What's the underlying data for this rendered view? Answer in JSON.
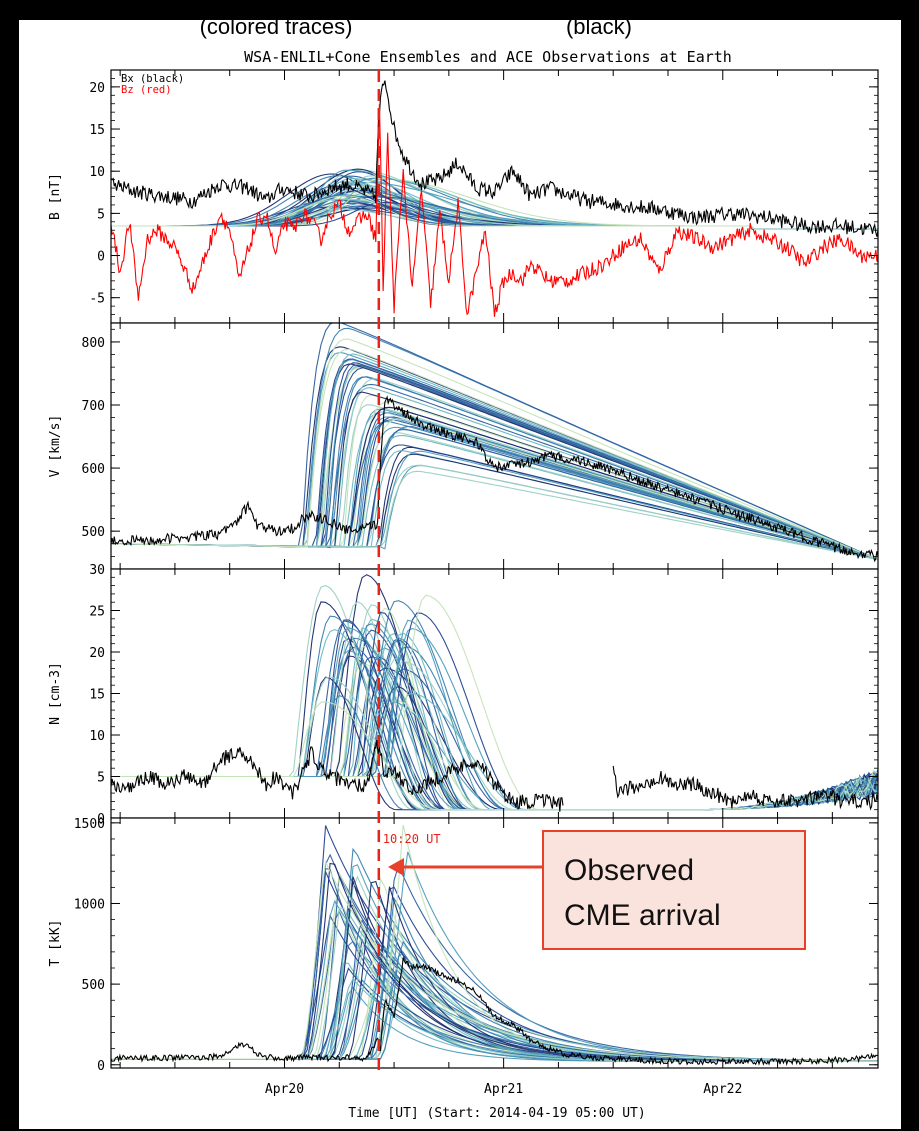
{
  "header": {
    "colored_label": "(colored traces)",
    "black_label": "(black)",
    "title": "WSA-ENLIL+Cone Ensembles and ACE Observations at Earth"
  },
  "colors": {
    "background": "#000000",
    "plot_bg": "#ffffff",
    "observed": "#000000",
    "bz": "#ff0000",
    "ensemble": [
      "#1a2a6c",
      "#22438f",
      "#2c5fa0",
      "#3a7fb0",
      "#4d9cbc",
      "#6cb8c4",
      "#9bd0c3",
      "#c4e3b8"
    ],
    "arrival_line": "#e8241a",
    "callout_border": "#e8402a",
    "callout_bg": "#fbe3dd"
  },
  "x_axis": {
    "label": "Time [UT] (Start: 2014-04-19 05:00 UT)",
    "range_hours": [
      0,
      84
    ],
    "ticks": [
      {
        "h": 19,
        "label": "Apr20"
      },
      {
        "h": 43,
        "label": "Apr21"
      },
      {
        "h": 67,
        "label": "Apr22"
      }
    ],
    "minor_step_hours": 6
  },
  "annotation": {
    "arrival_hour": 29.33,
    "arrival_label": "10:20 UT",
    "callout_lines": [
      "Observed",
      "CME arrival"
    ]
  },
  "chart_data": [
    {
      "type": "line",
      "panel": "B",
      "ylabel": "B [nT]",
      "ylim": [
        -8,
        22
      ],
      "yticks": [
        -5,
        0,
        5,
        10,
        15,
        20
      ],
      "legend": [
        {
          "name": "Bx (black)",
          "color": "#000000"
        },
        {
          "name": "Bz (red)",
          "color": "#ff0000"
        }
      ],
      "legend_position": "top-left",
      "observed_series": [
        {
          "name": "Bx (black)",
          "color": "#000000",
          "x": [
            0,
            3,
            6,
            9,
            12,
            15,
            17,
            18,
            19,
            20,
            22,
            24,
            26,
            27,
            28,
            29,
            29.3,
            29.6,
            30,
            31,
            32,
            33,
            34,
            36,
            38,
            40,
            42,
            44,
            46,
            48,
            52,
            56,
            60,
            64,
            68,
            72,
            76,
            80,
            84
          ],
          "y": [
            8.5,
            7.5,
            7,
            6.5,
            8.5,
            8,
            6.5,
            7.5,
            8,
            7.5,
            7,
            8,
            8.5,
            8,
            7.5,
            7,
            16,
            19,
            21,
            15,
            12,
            10,
            8.5,
            9,
            11,
            8,
            7.5,
            10,
            7,
            8,
            6.5,
            6,
            5.5,
            4.5,
            5,
            4.5,
            3.5,
            3.5,
            3
          ]
        },
        {
          "name": "Bz (red)",
          "color": "#ff0000",
          "x": [
            0,
            1,
            2,
            3,
            4,
            5,
            7,
            9,
            11,
            12,
            13,
            14,
            16,
            17,
            18,
            19,
            20,
            21,
            22,
            23,
            24,
            25,
            26,
            27,
            28,
            29,
            29.4,
            29.8,
            30.3,
            31,
            32,
            33,
            34,
            35,
            36,
            37,
            38,
            39,
            40,
            41,
            42,
            43,
            44,
            45,
            46,
            48,
            50,
            52,
            54,
            56,
            58,
            60,
            62,
            64,
            66,
            68,
            70,
            72,
            74,
            76,
            78,
            80,
            82,
            84
          ],
          "y": [
            4,
            -2,
            4,
            -5,
            2,
            3,
            1,
            -4,
            2,
            5,
            3,
            -3,
            4,
            5,
            0,
            4,
            3,
            5,
            4,
            2,
            5,
            6,
            3,
            4,
            5,
            2,
            18,
            -4,
            14,
            -6,
            10,
            -4,
            8,
            -6,
            5,
            -3,
            6,
            -7,
            -2,
            3,
            -7,
            -3,
            -2,
            -3,
            -1,
            -3,
            -3,
            -2,
            -1,
            1,
            2,
            -2,
            3,
            2,
            1,
            2,
            3,
            2,
            1,
            -1,
            1,
            2,
            0,
            0
          ]
        }
      ],
      "ensemble_count": 48,
      "ensemble_baseline": 3.5,
      "ensemble_peak_range": [
        5.5,
        10.5
      ],
      "ensemble_peak_hour_range": [
        24,
        30
      ]
    },
    {
      "type": "line",
      "panel": "V",
      "ylabel": "V [km/s]",
      "ylim": [
        440,
        830
      ],
      "yticks": [
        500,
        600,
        700,
        800
      ],
      "observed_series": [
        {
          "name": "V observed",
          "color": "#000000",
          "x": [
            0,
            4,
            8,
            12,
            14,
            15,
            16,
            18,
            20,
            21,
            22,
            24,
            26,
            28,
            29.2,
            29.5,
            30,
            32,
            34,
            36,
            38,
            40,
            42,
            44,
            46,
            48,
            50,
            52,
            54,
            56,
            60,
            64,
            68,
            72,
            76,
            80,
            84
          ],
          "y": [
            485,
            485,
            490,
            495,
            520,
            540,
            510,
            500,
            505,
            520,
            525,
            515,
            500,
            505,
            510,
            615,
            710,
            690,
            670,
            660,
            650,
            640,
            600,
            605,
            610,
            620,
            615,
            610,
            600,
            590,
            570,
            550,
            530,
            510,
            490,
            470,
            460
          ]
        }
      ],
      "ensemble_count": 48,
      "ensemble_baseline": 470,
      "ensemble_peak_range": [
        600,
        820
      ],
      "ensemble_end_value": 455
    },
    {
      "type": "line",
      "panel": "N",
      "ylabel": "N [cm-3]",
      "ylim": [
        0,
        30
      ],
      "yticks": [
        0,
        5,
        10,
        15,
        20,
        25,
        30
      ],
      "observed_series": [
        {
          "name": "N observed",
          "color": "#000000",
          "x": [
            0,
            2,
            4,
            6,
            8,
            10,
            12,
            14,
            16,
            17,
            18,
            20,
            22,
            23,
            24,
            26,
            28,
            29,
            29.5,
            30,
            31,
            32,
            33,
            34,
            36,
            38,
            40,
            42,
            44,
            46,
            48,
            49.5
          ],
          "y": [
            4,
            3.5,
            5,
            4,
            5,
            4,
            7,
            8,
            6,
            4,
            5,
            3,
            8,
            6,
            5,
            4,
            4,
            9,
            8,
            5,
            6,
            4,
            3,
            4,
            5,
            6,
            7,
            4,
            2,
            2,
            2,
            1.5
          ]
        },
        {
          "name": "N observed (late)",
          "color": "#000000",
          "x": [
            55,
            55.5,
            58,
            60,
            62,
            64,
            66,
            68,
            70,
            72,
            74,
            76,
            78,
            80,
            82,
            84
          ],
          "y": [
            6,
            3,
            4,
            5,
            4,
            4,
            3,
            2,
            3,
            2,
            2,
            2,
            3,
            2,
            2,
            2
          ]
        }
      ],
      "ensemble_count": 48,
      "ensemble_baseline": 5,
      "ensemble_peak_range": [
        14,
        29.5
      ],
      "ensemble_min_value": 1
    },
    {
      "type": "line",
      "panel": "T",
      "ylabel": "T [kK]",
      "ylim": [
        -20,
        1530
      ],
      "yticks": [
        0,
        500,
        1000,
        1500
      ],
      "observed_series": [
        {
          "name": "T observed",
          "color": "#000000",
          "x": [
            0,
            4,
            8,
            12,
            14,
            15,
            16,
            18,
            20,
            22,
            24,
            26,
            28,
            29.2,
            29.5,
            30,
            31,
            32,
            33,
            34,
            36,
            38,
            40,
            42,
            44,
            46,
            48,
            50,
            54,
            58,
            62,
            66,
            70,
            74,
            78,
            82,
            84
          ],
          "y": [
            40,
            40,
            45,
            50,
            120,
            130,
            60,
            40,
            40,
            50,
            40,
            50,
            40,
            150,
            100,
            400,
            300,
            650,
            600,
            620,
            560,
            520,
            450,
            300,
            250,
            150,
            100,
            60,
            40,
            30,
            20,
            20,
            20,
            20,
            25,
            40,
            60
          ]
        }
      ],
      "ensemble_count": 48,
      "ensemble_baseline": 35,
      "ensemble_peak_range": [
        500,
        1500
      ],
      "ensemble_end_value": 20
    }
  ]
}
